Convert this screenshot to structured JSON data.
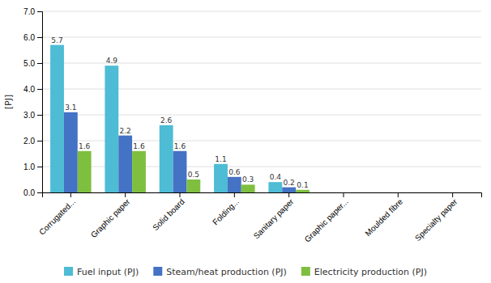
{
  "chart_data": {
    "type": "bar",
    "y_label": "[PJ]",
    "categories": [
      "Corrugated...",
      "Graphic paper",
      "Solid board",
      "Folding...",
      "Sanitary paper",
      "Graphic paper...",
      "Moulded fibre",
      "Specialty paper"
    ],
    "series": [
      {
        "name": "Fuel input (PJ)",
        "color": "#4DBCD4",
        "values": [
          5.7,
          4.9,
          2.6,
          1.1,
          0.4,
          0.0,
          0.0,
          0.0
        ],
        "value_labels": [
          "5.7",
          "4.9",
          "2.6",
          "1.1",
          "0.4",
          null,
          null,
          null
        ]
      },
      {
        "name": "Steam/heat production (PJ)",
        "color": "#4472C4",
        "values": [
          3.1,
          2.2,
          1.6,
          0.6,
          0.2,
          0.0,
          0.0,
          0.0
        ],
        "value_labels": [
          "3.1",
          "2.2",
          "1.6",
          "0.6",
          "0.2",
          null,
          null,
          null
        ]
      },
      {
        "name": "Electricity production (PJ)",
        "color": "#7FBF40",
        "values": [
          1.6,
          1.6,
          0.5,
          0.3,
          0.1,
          0.0,
          0.0,
          0.0
        ],
        "value_labels": [
          "1.6",
          "1.6",
          "0.5",
          "0.3",
          "0.1",
          null,
          null,
          null
        ]
      }
    ],
    "ylim": [
      0.0,
      7.0
    ],
    "yticks": [
      {
        "value": 0,
        "label": "0.0"
      },
      {
        "value": 1,
        "label": "1.0"
      },
      {
        "value": 2,
        "label": "2.0"
      },
      {
        "value": 3,
        "label": "3.0"
      },
      {
        "value": 4,
        "label": "4.0"
      },
      {
        "value": 5,
        "label": "5.0"
      },
      {
        "value": 6,
        "label": "6.0"
      },
      {
        "value": 7,
        "label": "7.0"
      }
    ],
    "grid": true,
    "data_labels": true,
    "legend": "bottom"
  }
}
